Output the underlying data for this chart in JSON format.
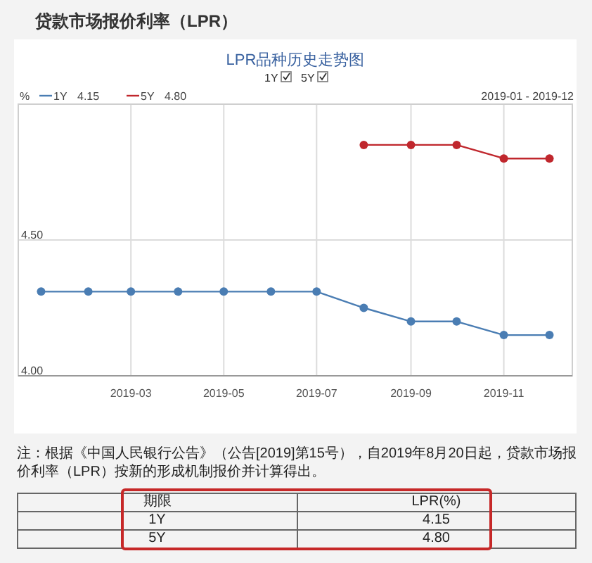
{
  "chart_data": {
    "type": "line",
    "title": "贷款市场报价利率（LPR）",
    "subtitle": "LPR品种历史走势图",
    "ylabel": "%",
    "x": [
      "2019-01",
      "2019-02",
      "2019-03",
      "2019-04",
      "2019-05",
      "2019-06",
      "2019-07",
      "2019-08",
      "2019-09",
      "2019-10",
      "2019-11",
      "2019-12"
    ],
    "series": [
      {
        "name": "1Y",
        "color": "#4a7db3",
        "values": [
          4.31,
          4.31,
          4.31,
          4.31,
          4.31,
          4.31,
          4.31,
          4.25,
          4.2,
          4.2,
          4.15,
          4.15
        ]
      },
      {
        "name": "5Y",
        "color": "#c0272d",
        "values": [
          null,
          null,
          null,
          null,
          null,
          null,
          null,
          4.85,
          4.85,
          4.85,
          4.8,
          4.8
        ]
      }
    ],
    "xlim": [
      "2018-12-17",
      "2019-12-16"
    ],
    "xticks": [
      "2019-03",
      "2019-05",
      "2019-07",
      "2019-09",
      "2019-11"
    ],
    "ylim": [
      4,
      5
    ],
    "yticks": [
      {
        "value": 4,
        "label": "4.00"
      },
      {
        "value": 4.5,
        "label": "4.50"
      }
    ],
    "grid": true,
    "legend": "top left",
    "marker": "circle",
    "line_style": "solid",
    "annotations": [
      "2019-01 - 2019-12",
      "4.15",
      "4.80",
      "注：根据《中国人民银行公告》（公告[2019]第15号），自2019年8月20日起，贷款市场报价利率（LPR）按新的形成机制报价并计算得出。",
      "期限",
      "LPR(%)",
      "1Y",
      "4.15",
      "5Y",
      "4.80"
    ]
  }
}
